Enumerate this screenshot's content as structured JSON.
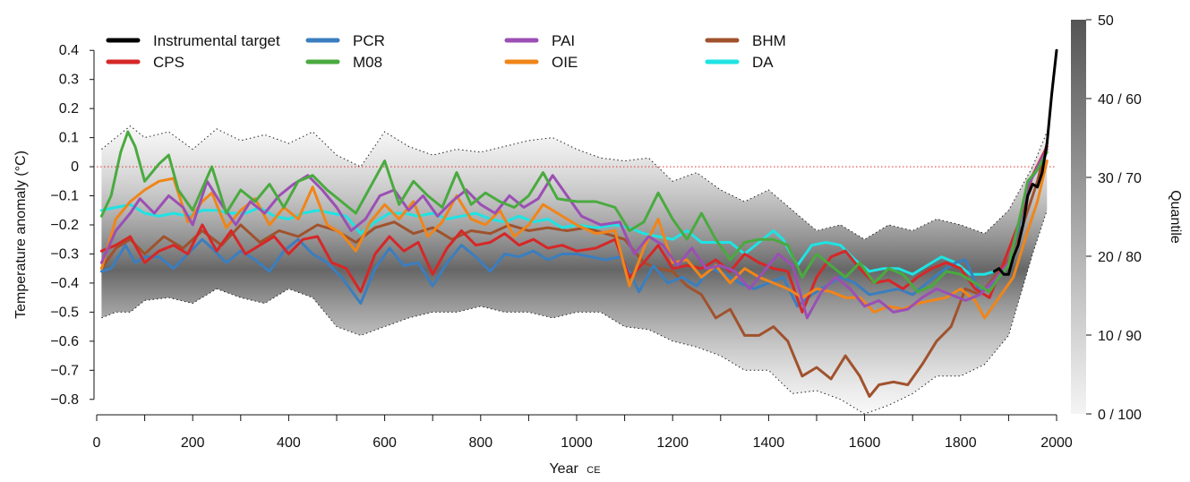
{
  "chart_data": {
    "type": "line",
    "xlabel": "Year",
    "xlabel_suffix": "CE",
    "ylabel": "Temperature anomaly (°C)",
    "xlim": [
      0,
      2000
    ],
    "ylim": [
      -0.85,
      0.45
    ],
    "x_ticks": [
      0,
      200,
      400,
      600,
      800,
      1000,
      1200,
      1400,
      1600,
      1800,
      2000
    ],
    "y_ticks": [
      0.4,
      0.3,
      0.2,
      0.1,
      0,
      -0.1,
      -0.2,
      -0.3,
      -0.4,
      -0.5,
      -0.6,
      -0.7,
      -0.8
    ],
    "zero_reference_line": true,
    "legend_placement": "top",
    "colorbar": {
      "label": "Quantile",
      "ticks": [
        "50",
        "40 / 60",
        "30 / 70",
        "20 / 80",
        "10 / 90",
        "0 / 100"
      ]
    },
    "series": [
      {
        "name": "Instrumental target",
        "color": "#000000",
        "x": [
          1870,
          1880,
          1890,
          1900,
          1910,
          1920,
          1930,
          1940,
          1950,
          1960,
          1970,
          1980,
          1990,
          2000
        ],
        "y": [
          -0.36,
          -0.35,
          -0.37,
          -0.37,
          -0.31,
          -0.27,
          -0.2,
          -0.1,
          -0.06,
          -0.07,
          -0.02,
          0.08,
          0.25,
          0.4
        ]
      },
      {
        "name": "PCR",
        "color": "#3a7ebf",
        "x": [
          10,
          30,
          60,
          80,
          100,
          130,
          160,
          190,
          220,
          240,
          270,
          300,
          330,
          360,
          390,
          420,
          450,
          480,
          510,
          550,
          580,
          610,
          640,
          670,
          700,
          730,
          760,
          790,
          820,
          850,
          880,
          910,
          940,
          970,
          1000,
          1030,
          1060,
          1090,
          1110,
          1130,
          1160,
          1190,
          1220,
          1250,
          1280,
          1310,
          1340,
          1370,
          1400,
          1430,
          1460,
          1490,
          1520,
          1550,
          1580,
          1610,
          1640,
          1670,
          1700,
          1730,
          1760,
          1790,
          1810,
          1840,
          1860,
          1880,
          1900,
          1920,
          1940,
          1960,
          1980
        ],
        "y": [
          -0.36,
          -0.35,
          -0.27,
          -0.33,
          -0.31,
          -0.31,
          -0.35,
          -0.3,
          -0.25,
          -0.28,
          -0.33,
          -0.29,
          -0.32,
          -0.36,
          -0.29,
          -0.25,
          -0.3,
          -0.33,
          -0.38,
          -0.47,
          -0.35,
          -0.28,
          -0.34,
          -0.33,
          -0.41,
          -0.33,
          -0.27,
          -0.31,
          -0.36,
          -0.3,
          -0.31,
          -0.29,
          -0.32,
          -0.3,
          -0.3,
          -0.31,
          -0.32,
          -0.31,
          -0.36,
          -0.43,
          -0.34,
          -0.4,
          -0.38,
          -0.41,
          -0.35,
          -0.37,
          -0.4,
          -0.42,
          -0.4,
          -0.38,
          -0.48,
          -0.44,
          -0.41,
          -0.38,
          -0.4,
          -0.44,
          -0.43,
          -0.42,
          -0.44,
          -0.4,
          -0.36,
          -0.33,
          -0.32,
          -0.43,
          -0.41,
          -0.38,
          -0.33,
          -0.22,
          -0.06,
          -0.01,
          0.07
        ]
      },
      {
        "name": "CPS",
        "color": "#d62728",
        "x": [
          10,
          40,
          70,
          100,
          130,
          160,
          190,
          220,
          250,
          280,
          310,
          340,
          370,
          400,
          430,
          460,
          490,
          520,
          550,
          580,
          610,
          640,
          670,
          700,
          730,
          760,
          790,
          820,
          850,
          880,
          910,
          940,
          970,
          1000,
          1040,
          1080,
          1110,
          1140,
          1170,
          1200,
          1230,
          1260,
          1290,
          1320,
          1350,
          1380,
          1410,
          1440,
          1470,
          1500,
          1530,
          1560,
          1590,
          1620,
          1650,
          1680,
          1710,
          1740,
          1770,
          1800,
          1830,
          1860,
          1890,
          1920,
          1950,
          1980
        ],
        "y": [
          -0.29,
          -0.27,
          -0.24,
          -0.33,
          -0.29,
          -0.27,
          -0.3,
          -0.2,
          -0.29,
          -0.22,
          -0.3,
          -0.27,
          -0.24,
          -0.3,
          -0.25,
          -0.24,
          -0.33,
          -0.35,
          -0.43,
          -0.3,
          -0.24,
          -0.29,
          -0.26,
          -0.37,
          -0.28,
          -0.22,
          -0.27,
          -0.26,
          -0.23,
          -0.27,
          -0.25,
          -0.28,
          -0.27,
          -0.29,
          -0.28,
          -0.25,
          -0.38,
          -0.33,
          -0.27,
          -0.35,
          -0.34,
          -0.35,
          -0.32,
          -0.36,
          -0.3,
          -0.33,
          -0.35,
          -0.36,
          -0.5,
          -0.38,
          -0.31,
          -0.29,
          -0.35,
          -0.4,
          -0.39,
          -0.42,
          -0.38,
          -0.35,
          -0.33,
          -0.35,
          -0.42,
          -0.45,
          -0.33,
          -0.2,
          -0.03,
          0.07
        ]
      },
      {
        "name": "M08",
        "color": "#4aaa3f",
        "x": [
          10,
          30,
          50,
          65,
          80,
          100,
          130,
          150,
          170,
          200,
          240,
          270,
          300,
          330,
          360,
          390,
          420,
          450,
          480,
          510,
          540,
          570,
          600,
          630,
          660,
          690,
          720,
          750,
          780,
          810,
          840,
          870,
          900,
          930,
          960,
          1000,
          1040,
          1080,
          1110,
          1140,
          1170,
          1200,
          1230,
          1260,
          1290,
          1320,
          1350,
          1380,
          1410,
          1440,
          1470,
          1500,
          1530,
          1560,
          1590,
          1620,
          1650,
          1680,
          1710,
          1740,
          1770,
          1800,
          1830,
          1860,
          1880,
          1900,
          1920,
          1940,
          1960,
          1980
        ],
        "y": [
          -0.17,
          -0.1,
          0.05,
          0.12,
          0.07,
          -0.05,
          0.01,
          0.04,
          -0.08,
          -0.15,
          0.0,
          -0.16,
          -0.08,
          -0.12,
          -0.06,
          -0.14,
          -0.05,
          -0.03,
          -0.08,
          -0.12,
          -0.16,
          -0.07,
          0.02,
          -0.13,
          -0.05,
          -0.1,
          -0.14,
          -0.02,
          -0.13,
          -0.09,
          -0.12,
          -0.14,
          -0.1,
          -0.02,
          -0.11,
          -0.12,
          -0.12,
          -0.14,
          -0.22,
          -0.19,
          -0.09,
          -0.18,
          -0.25,
          -0.16,
          -0.25,
          -0.32,
          -0.26,
          -0.25,
          -0.25,
          -0.27,
          -0.38,
          -0.3,
          -0.34,
          -0.38,
          -0.33,
          -0.4,
          -0.35,
          -0.37,
          -0.43,
          -0.41,
          -0.36,
          -0.37,
          -0.4,
          -0.43,
          -0.38,
          -0.34,
          -0.2,
          -0.05,
          -0.01,
          0.05
        ]
      },
      {
        "name": "PAI",
        "color": "#9b4fb4",
        "x": [
          10,
          40,
          70,
          90,
          120,
          150,
          180,
          200,
          230,
          260,
          290,
          320,
          350,
          380,
          410,
          440,
          470,
          500,
          530,
          560,
          590,
          620,
          650,
          680,
          710,
          740,
          770,
          800,
          830,
          860,
          890,
          920,
          950,
          980,
          1010,
          1050,
          1090,
          1120,
          1150,
          1180,
          1210,
          1240,
          1270,
          1300,
          1330,
          1360,
          1390,
          1420,
          1450,
          1480,
          1510,
          1540,
          1570,
          1600,
          1630,
          1660,
          1690,
          1720,
          1750,
          1780,
          1810,
          1840,
          1870,
          1900,
          1920,
          1940,
          1960,
          1980
        ],
        "y": [
          -0.33,
          -0.22,
          -0.16,
          -0.11,
          -0.16,
          -0.1,
          -0.14,
          -0.2,
          -0.05,
          -0.13,
          -0.2,
          -0.12,
          -0.16,
          -0.1,
          -0.06,
          -0.03,
          -0.08,
          -0.14,
          -0.22,
          -0.18,
          -0.1,
          -0.08,
          -0.15,
          -0.1,
          -0.17,
          -0.12,
          -0.08,
          -0.13,
          -0.16,
          -0.1,
          -0.14,
          -0.11,
          -0.03,
          -0.1,
          -0.17,
          -0.2,
          -0.19,
          -0.3,
          -0.24,
          -0.27,
          -0.34,
          -0.28,
          -0.35,
          -0.34,
          -0.36,
          -0.42,
          -0.36,
          -0.3,
          -0.34,
          -0.52,
          -0.43,
          -0.38,
          -0.42,
          -0.48,
          -0.46,
          -0.5,
          -0.49,
          -0.45,
          -0.42,
          -0.44,
          -0.46,
          -0.44,
          -0.39,
          -0.33,
          -0.2,
          -0.07,
          0.0,
          0.06
        ]
      },
      {
        "name": "OIE",
        "color": "#f08519",
        "x": [
          10,
          40,
          70,
          100,
          130,
          160,
          190,
          220,
          240,
          270,
          300,
          330,
          360,
          390,
          420,
          450,
          480,
          510,
          540,
          570,
          600,
          630,
          660,
          690,
          720,
          750,
          780,
          810,
          840,
          870,
          900,
          930,
          960,
          1000,
          1040,
          1080,
          1110,
          1140,
          1170,
          1200,
          1230,
          1260,
          1290,
          1320,
          1350,
          1380,
          1410,
          1440,
          1470,
          1500,
          1530,
          1560,
          1590,
          1620,
          1650,
          1680,
          1710,
          1740,
          1770,
          1800,
          1830,
          1850,
          1880,
          1910,
          1940,
          1960,
          1980
        ],
        "y": [
          -0.35,
          -0.18,
          -0.12,
          -0.08,
          -0.05,
          -0.04,
          -0.19,
          -0.12,
          -0.09,
          -0.21,
          -0.15,
          -0.11,
          -0.2,
          -0.14,
          -0.18,
          -0.07,
          -0.2,
          -0.23,
          -0.29,
          -0.19,
          -0.13,
          -0.18,
          -0.12,
          -0.24,
          -0.19,
          -0.1,
          -0.18,
          -0.2,
          -0.15,
          -0.24,
          -0.2,
          -0.13,
          -0.16,
          -0.2,
          -0.23,
          -0.22,
          -0.41,
          -0.28,
          -0.18,
          -0.33,
          -0.32,
          -0.38,
          -0.34,
          -0.4,
          -0.35,
          -0.38,
          -0.4,
          -0.42,
          -0.45,
          -0.42,
          -0.43,
          -0.45,
          -0.45,
          -0.5,
          -0.48,
          -0.49,
          -0.47,
          -0.46,
          -0.45,
          -0.42,
          -0.46,
          -0.52,
          -0.45,
          -0.38,
          -0.22,
          -0.12,
          0.02
        ]
      },
      {
        "name": "BHM",
        "color": "#a0522d",
        "x": [
          10,
          40,
          70,
          100,
          140,
          180,
          220,
          260,
          300,
          340,
          380,
          420,
          460,
          500,
          540,
          580,
          620,
          660,
          700,
          740,
          780,
          820,
          860,
          900,
          940,
          980,
          1020,
          1060,
          1100,
          1140,
          1170,
          1200,
          1230,
          1260,
          1290,
          1320,
          1350,
          1380,
          1410,
          1440,
          1470,
          1500,
          1530,
          1560,
          1590,
          1610,
          1630,
          1660,
          1690,
          1720,
          1750,
          1780,
          1810,
          1840,
          1870,
          1900,
          1930,
          1960,
          1980
        ],
        "y": [
          -0.35,
          -0.28,
          -0.25,
          -0.3,
          -0.24,
          -0.28,
          -0.22,
          -0.27,
          -0.2,
          -0.26,
          -0.22,
          -0.24,
          -0.2,
          -0.22,
          -0.26,
          -0.21,
          -0.19,
          -0.23,
          -0.21,
          -0.25,
          -0.22,
          -0.23,
          -0.2,
          -0.22,
          -0.21,
          -0.22,
          -0.21,
          -0.23,
          -0.25,
          -0.33,
          -0.35,
          -0.36,
          -0.41,
          -0.44,
          -0.52,
          -0.49,
          -0.58,
          -0.58,
          -0.55,
          -0.6,
          -0.72,
          -0.69,
          -0.73,
          -0.65,
          -0.72,
          -0.79,
          -0.75,
          -0.74,
          -0.75,
          -0.68,
          -0.6,
          -0.55,
          -0.42,
          -0.44,
          -0.38,
          -0.32,
          -0.2,
          -0.05,
          0.08
        ]
      },
      {
        "name": "DA",
        "color": "#1fe3e3",
        "x": [
          10,
          40,
          70,
          100,
          130,
          160,
          190,
          220,
          250,
          280,
          310,
          340,
          370,
          400,
          430,
          460,
          490,
          520,
          550,
          580,
          610,
          640,
          670,
          700,
          730,
          760,
          790,
          820,
          850,
          880,
          910,
          940,
          970,
          1000,
          1040,
          1080,
          1110,
          1140,
          1170,
          1200,
          1230,
          1260,
          1290,
          1320,
          1350,
          1380,
          1410,
          1430,
          1460,
          1490,
          1520,
          1550,
          1580,
          1610,
          1640,
          1670,
          1700,
          1730,
          1760,
          1790,
          1820,
          1850,
          1870
        ],
        "y": [
          -0.15,
          -0.14,
          -0.13,
          -0.16,
          -0.17,
          -0.16,
          -0.17,
          -0.15,
          -0.15,
          -0.16,
          -0.16,
          -0.14,
          -0.17,
          -0.18,
          -0.16,
          -0.15,
          -0.16,
          -0.17,
          -0.23,
          -0.19,
          -0.16,
          -0.16,
          -0.17,
          -0.16,
          -0.18,
          -0.17,
          -0.16,
          -0.18,
          -0.19,
          -0.17,
          -0.19,
          -0.18,
          -0.21,
          -0.2,
          -0.21,
          -0.2,
          -0.21,
          -0.23,
          -0.24,
          -0.25,
          -0.22,
          -0.26,
          -0.26,
          -0.26,
          -0.3,
          -0.26,
          -0.22,
          -0.25,
          -0.34,
          -0.27,
          -0.26,
          -0.27,
          -0.32,
          -0.36,
          -0.35,
          -0.35,
          -0.37,
          -0.34,
          -0.31,
          -0.33,
          -0.37,
          -0.37,
          -0.36
        ]
      }
    ],
    "ensemble_envelope": {
      "x": [
        10,
        40,
        70,
        100,
        150,
        200,
        250,
        300,
        350,
        400,
        450,
        500,
        550,
        600,
        650,
        700,
        750,
        800,
        850,
        900,
        950,
        1000,
        1050,
        1100,
        1150,
        1200,
        1250,
        1300,
        1350,
        1400,
        1450,
        1500,
        1550,
        1600,
        1650,
        1700,
        1750,
        1800,
        1850,
        1900,
        1950,
        1980
      ],
      "upper": [
        0.06,
        0.1,
        0.14,
        0.1,
        0.12,
        0.06,
        0.13,
        0.09,
        0.11,
        0.08,
        0.12,
        0.04,
        0.0,
        0.12,
        0.07,
        0.04,
        0.06,
        0.05,
        0.07,
        0.09,
        0.1,
        0.06,
        0.03,
        0.02,
        0.03,
        -0.05,
        -0.02,
        -0.08,
        -0.12,
        -0.08,
        -0.15,
        -0.22,
        -0.2,
        -0.25,
        -0.2,
        -0.22,
        -0.18,
        -0.2,
        -0.23,
        -0.15,
        0.0,
        0.12
      ],
      "lower": [
        -0.52,
        -0.5,
        -0.5,
        -0.46,
        -0.45,
        -0.47,
        -0.42,
        -0.45,
        -0.47,
        -0.42,
        -0.45,
        -0.55,
        -0.58,
        -0.55,
        -0.52,
        -0.5,
        -0.5,
        -0.48,
        -0.5,
        -0.5,
        -0.52,
        -0.5,
        -0.5,
        -0.55,
        -0.56,
        -0.6,
        -0.62,
        -0.65,
        -0.7,
        -0.7,
        -0.78,
        -0.77,
        -0.8,
        -0.85,
        -0.82,
        -0.78,
        -0.72,
        -0.72,
        -0.68,
        -0.58,
        -0.3,
        -0.15
      ]
    }
  }
}
